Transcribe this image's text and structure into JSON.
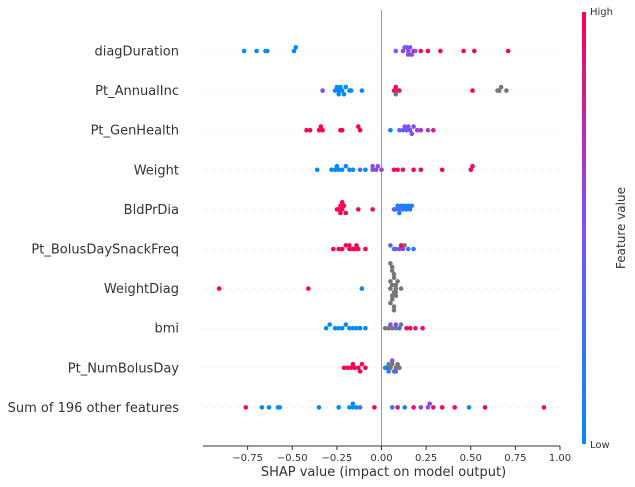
{
  "chart_data": {
    "type": "scatter",
    "subtype": "shap-beeswarm",
    "xlabel": "SHAP value (impact on model output)",
    "xlim": [
      -1.0,
      1.0
    ],
    "x_ticks": [
      -0.75,
      -0.5,
      -0.25,
      0.0,
      0.25,
      0.5,
      0.75,
      1.0
    ],
    "x_tick_labels": [
      "−0.75",
      "−0.50",
      "−0.25",
      "0.00",
      "0.25",
      "0.50",
      "0.75",
      "1.00"
    ],
    "grid": false,
    "colorbar": {
      "title": "Feature value",
      "high_label": "High",
      "low_label": "Low",
      "high_color": "#ff0052",
      "low_color": "#008bfb",
      "missing_color": "#777777"
    },
    "features": [
      {
        "name": "diagDuration",
        "points": [
          {
            "x": -0.77,
            "v": 0.0
          },
          {
            "x": -0.7,
            "v": 0.0
          },
          {
            "x": -0.65,
            "v": 0.0
          },
          {
            "x": -0.64,
            "v": 0.0
          },
          {
            "x": -0.49,
            "v": 0.0
          },
          {
            "x": -0.48,
            "v": 0.0
          },
          {
            "x": 0.12,
            "v": 0.6
          },
          {
            "x": 0.15,
            "v": 0.55
          },
          {
            "x": 0.18,
            "v": 0.9
          },
          {
            "x": 0.14,
            "v": 0.5
          },
          {
            "x": 0.16,
            "v": 0.45
          },
          {
            "x": 0.13,
            "v": 0.5
          },
          {
            "x": 0.17,
            "v": 0.55
          },
          {
            "x": 0.15,
            "v": 0.6
          },
          {
            "x": 0.19,
            "v": 0.5
          },
          {
            "x": 0.22,
            "v": 0.95
          },
          {
            "x": 0.26,
            "v": 1.0
          },
          {
            "x": 0.08,
            "v": 0.45
          },
          {
            "x": 0.33,
            "v": 1.0
          },
          {
            "x": 0.46,
            "v": 1.0
          },
          {
            "x": 0.52,
            "v": 1.0
          },
          {
            "x": 0.71,
            "v": 1.0
          }
        ]
      },
      {
        "name": "Pt_AnnualInc",
        "points": [
          {
            "x": -0.33,
            "v": 0.5
          },
          {
            "x": -0.26,
            "v": 0.0
          },
          {
            "x": -0.24,
            "v": 0.0
          },
          {
            "x": -0.22,
            "v": 0.0
          },
          {
            "x": -0.25,
            "v": 0.0
          },
          {
            "x": -0.2,
            "v": 0.0
          },
          {
            "x": -0.23,
            "v": 0.0
          },
          {
            "x": -0.18,
            "v": 0.0
          },
          {
            "x": -0.17,
            "v": 0.0
          },
          {
            "x": -0.11,
            "v": 0.0
          },
          {
            "x": -0.21,
            "v": 0.0
          },
          {
            "x": -0.24,
            "v": 0.0
          },
          {
            "x": 0.07,
            "v": 0.9
          },
          {
            "x": 0.09,
            "v": 0.85
          },
          {
            "x": 0.08,
            "v": 1.0
          },
          {
            "x": 0.1,
            "v": 0.9
          },
          {
            "x": 0.08,
            "v": null
          },
          {
            "x": 0.51,
            "v": 1.0
          },
          {
            "x": 0.65,
            "v": null
          },
          {
            "x": 0.66,
            "v": null
          },
          {
            "x": 0.67,
            "v": null
          },
          {
            "x": 0.7,
            "v": null
          }
        ]
      },
      {
        "name": "Pt_GenHealth",
        "points": [
          {
            "x": -0.42,
            "v": 1.0
          },
          {
            "x": -0.4,
            "v": 1.0
          },
          {
            "x": -0.35,
            "v": 1.0
          },
          {
            "x": -0.33,
            "v": 1.0
          },
          {
            "x": -0.34,
            "v": 1.0
          },
          {
            "x": -0.23,
            "v": 1.0
          },
          {
            "x": -0.22,
            "v": 1.0
          },
          {
            "x": -0.12,
            "v": 1.0
          },
          {
            "x": -0.13,
            "v": 1.0
          },
          {
            "x": 0.05,
            "v": 0.0
          },
          {
            "x": 0.12,
            "v": 0.4
          },
          {
            "x": 0.14,
            "v": 0.45
          },
          {
            "x": 0.16,
            "v": 0.55
          },
          {
            "x": 0.18,
            "v": 0.5
          },
          {
            "x": 0.2,
            "v": 0.6
          },
          {
            "x": 0.13,
            "v": 0.5
          },
          {
            "x": 0.15,
            "v": 0.55
          },
          {
            "x": 0.17,
            "v": 0.45
          },
          {
            "x": 0.1,
            "v": 0.4
          },
          {
            "x": 0.22,
            "v": 0.7
          },
          {
            "x": 0.26,
            "v": 0.6
          },
          {
            "x": 0.29,
            "v": 0.85
          }
        ]
      },
      {
        "name": "Weight",
        "points": [
          {
            "x": -0.36,
            "v": 0.0
          },
          {
            "x": -0.28,
            "v": 0.0
          },
          {
            "x": -0.26,
            "v": 0.0
          },
          {
            "x": -0.24,
            "v": 0.0
          },
          {
            "x": -0.22,
            "v": 0.0
          },
          {
            "x": -0.2,
            "v": 0.0
          },
          {
            "x": -0.25,
            "v": 0.0
          },
          {
            "x": -0.18,
            "v": 0.1
          },
          {
            "x": -0.16,
            "v": 0.0
          },
          {
            "x": -0.12,
            "v": 0.3
          },
          {
            "x": -0.09,
            "v": 0.0
          },
          {
            "x": -0.05,
            "v": 0.5
          },
          {
            "x": -0.03,
            "v": 0.6
          },
          {
            "x": -0.02,
            "v": 0.5
          },
          {
            "x": 0.0,
            "v": 0.6
          },
          {
            "x": 0.07,
            "v": 0.9
          },
          {
            "x": 0.09,
            "v": 1.0
          },
          {
            "x": 0.12,
            "v": 0.9
          },
          {
            "x": 0.18,
            "v": 1.0
          },
          {
            "x": 0.22,
            "v": 1.0
          },
          {
            "x": 0.34,
            "v": 1.0
          },
          {
            "x": 0.5,
            "v": 1.0
          },
          {
            "x": 0.51,
            "v": 1.0
          },
          {
            "x": -0.05,
            "v": 0.55
          }
        ]
      },
      {
        "name": "BldPrDia",
        "points": [
          {
            "x": -0.25,
            "v": 1.0
          },
          {
            "x": -0.24,
            "v": 1.0
          },
          {
            "x": -0.23,
            "v": 1.0
          },
          {
            "x": -0.22,
            "v": 1.0
          },
          {
            "x": -0.21,
            "v": 1.0
          },
          {
            "x": -0.2,
            "v": 1.0
          },
          {
            "x": -0.23,
            "v": 1.0
          },
          {
            "x": -0.22,
            "v": 1.0
          },
          {
            "x": -0.13,
            "v": 1.0
          },
          {
            "x": -0.05,
            "v": 1.0
          },
          {
            "x": 0.08,
            "v": 0.2
          },
          {
            "x": 0.1,
            "v": 0.3
          },
          {
            "x": 0.12,
            "v": 0.2
          },
          {
            "x": 0.14,
            "v": 0.1
          },
          {
            "x": 0.16,
            "v": 0.2
          },
          {
            "x": 0.09,
            "v": 0.1
          },
          {
            "x": 0.11,
            "v": 0.2
          },
          {
            "x": 0.13,
            "v": 0.1
          },
          {
            "x": 0.15,
            "v": 0.0
          },
          {
            "x": 0.17,
            "v": 0.2
          },
          {
            "x": 0.1,
            "v": 0.0
          },
          {
            "x": 0.07,
            "v": 0.4
          }
        ]
      },
      {
        "name": "Pt_BolusDaySnackFreq",
        "points": [
          {
            "x": -0.27,
            "v": 1.0
          },
          {
            "x": -0.24,
            "v": 1.0
          },
          {
            "x": -0.22,
            "v": 1.0
          },
          {
            "x": -0.2,
            "v": 1.0
          },
          {
            "x": -0.18,
            "v": 1.0
          },
          {
            "x": -0.16,
            "v": 1.0
          },
          {
            "x": -0.15,
            "v": 1.0
          },
          {
            "x": -0.13,
            "v": 1.0
          },
          {
            "x": -0.14,
            "v": 1.0
          },
          {
            "x": -0.18,
            "v": 1.0
          },
          {
            "x": -0.09,
            "v": 1.0
          },
          {
            "x": 0.07,
            "v": null
          },
          {
            "x": 0.08,
            "v": 0.3
          },
          {
            "x": 0.1,
            "v": 0.5
          },
          {
            "x": 0.12,
            "v": 0.6
          },
          {
            "x": 0.13,
            "v": null
          },
          {
            "x": 0.15,
            "v": 0.2
          },
          {
            "x": 0.18,
            "v": 0.2
          },
          {
            "x": 0.11,
            "v": 1.0
          },
          {
            "x": 0.05,
            "v": 0.3
          }
        ]
      },
      {
        "name": "WeightDiag",
        "points": [
          {
            "x": -0.91,
            "v": 1.0
          },
          {
            "x": -0.41,
            "v": 1.0
          },
          {
            "x": -0.11,
            "v": 0.0
          },
          {
            "x": 0.05,
            "v": null
          },
          {
            "x": 0.06,
            "v": null
          },
          {
            "x": 0.07,
            "v": null
          },
          {
            "x": 0.08,
            "v": null
          },
          {
            "x": 0.05,
            "v": null
          },
          {
            "x": 0.06,
            "v": null
          },
          {
            "x": 0.07,
            "v": null
          },
          {
            "x": 0.08,
            "v": null
          },
          {
            "x": 0.06,
            "v": null
          },
          {
            "x": 0.07,
            "v": null
          },
          {
            "x": 0.05,
            "v": null
          },
          {
            "x": 0.08,
            "v": null
          },
          {
            "x": 0.06,
            "v": null
          },
          {
            "x": 0.07,
            "v": null
          },
          {
            "x": 0.09,
            "v": null
          },
          {
            "x": 0.06,
            "v": null
          },
          {
            "x": 0.11,
            "v": null
          },
          {
            "x": 0.07,
            "v": null
          },
          {
            "x": 0.05,
            "v": null
          },
          {
            "x": 0.08,
            "v": null
          }
        ]
      },
      {
        "name": "bmi",
        "points": [
          {
            "x": -0.31,
            "v": 0.0
          },
          {
            "x": -0.29,
            "v": 0.0
          },
          {
            "x": -0.26,
            "v": 0.0
          },
          {
            "x": -0.24,
            "v": 0.0
          },
          {
            "x": -0.22,
            "v": 0.0
          },
          {
            "x": -0.2,
            "v": 0.0
          },
          {
            "x": -0.18,
            "v": 0.0
          },
          {
            "x": -0.16,
            "v": 0.0
          },
          {
            "x": -0.14,
            "v": 0.0
          },
          {
            "x": -0.12,
            "v": 0.0
          },
          {
            "x": -0.09,
            "v": 0.0
          },
          {
            "x": 0.02,
            "v": null
          },
          {
            "x": 0.04,
            "v": null
          },
          {
            "x": 0.06,
            "v": null
          },
          {
            "x": 0.08,
            "v": null
          },
          {
            "x": 0.1,
            "v": 0.2
          },
          {
            "x": 0.11,
            "v": null
          },
          {
            "x": 0.14,
            "v": 0.9
          },
          {
            "x": 0.16,
            "v": 1.0
          },
          {
            "x": 0.19,
            "v": 0.9
          },
          {
            "x": 0.23,
            "v": 0.95
          },
          {
            "x": 0.05,
            "v": 0.5
          },
          {
            "x": 0.08,
            "v": 0.6
          }
        ]
      },
      {
        "name": "Pt_NumBolusDay",
        "points": [
          {
            "x": -0.21,
            "v": 1.0
          },
          {
            "x": -0.19,
            "v": 1.0
          },
          {
            "x": -0.17,
            "v": 1.0
          },
          {
            "x": -0.15,
            "v": 1.0
          },
          {
            "x": -0.13,
            "v": 1.0
          },
          {
            "x": -0.11,
            "v": 1.0
          },
          {
            "x": -0.09,
            "v": 1.0
          },
          {
            "x": -0.16,
            "v": 1.0
          },
          {
            "x": -0.12,
            "v": 1.0
          },
          {
            "x": 0.02,
            "v": 0.0
          },
          {
            "x": 0.03,
            "v": 0.0
          },
          {
            "x": 0.04,
            "v": null
          },
          {
            "x": 0.05,
            "v": null
          },
          {
            "x": 0.06,
            "v": null
          },
          {
            "x": 0.07,
            "v": null
          },
          {
            "x": 0.08,
            "v": null
          },
          {
            "x": 0.09,
            "v": null
          },
          {
            "x": 0.1,
            "v": null
          },
          {
            "x": 0.06,
            "v": 0.4
          },
          {
            "x": 0.04,
            "v": 0.2
          },
          {
            "x": 0.08,
            "v": 0.3
          }
        ]
      },
      {
        "name": "Sum of 196 other features",
        "points": [
          {
            "x": -0.76,
            "v": 1.0
          },
          {
            "x": -0.67,
            "v": 0.0
          },
          {
            "x": -0.63,
            "v": 0.0
          },
          {
            "x": -0.58,
            "v": 0.0
          },
          {
            "x": -0.57,
            "v": 0.0
          },
          {
            "x": -0.35,
            "v": 0.0
          },
          {
            "x": -0.24,
            "v": 0.0
          },
          {
            "x": -0.18,
            "v": 0.0
          },
          {
            "x": -0.16,
            "v": 0.0
          },
          {
            "x": -0.14,
            "v": 0.0
          },
          {
            "x": -0.12,
            "v": 0.2
          },
          {
            "x": -0.04,
            "v": 1.0
          },
          {
            "x": 0.06,
            "v": 0.2
          },
          {
            "x": 0.09,
            "v": 0.9
          },
          {
            "x": 0.13,
            "v": 0.1
          },
          {
            "x": 0.18,
            "v": 1.0
          },
          {
            "x": 0.22,
            "v": 0.6
          },
          {
            "x": 0.26,
            "v": 0.5
          },
          {
            "x": 0.29,
            "v": 0.9
          },
          {
            "x": 0.34,
            "v": 1.0
          },
          {
            "x": 0.41,
            "v": 1.0
          },
          {
            "x": 0.49,
            "v": 0.0
          },
          {
            "x": 0.58,
            "v": 1.0
          },
          {
            "x": 0.91,
            "v": 1.0
          },
          {
            "x": -0.16,
            "v": 0.0
          },
          {
            "x": 0.27,
            "v": 0.6
          }
        ]
      }
    ]
  }
}
